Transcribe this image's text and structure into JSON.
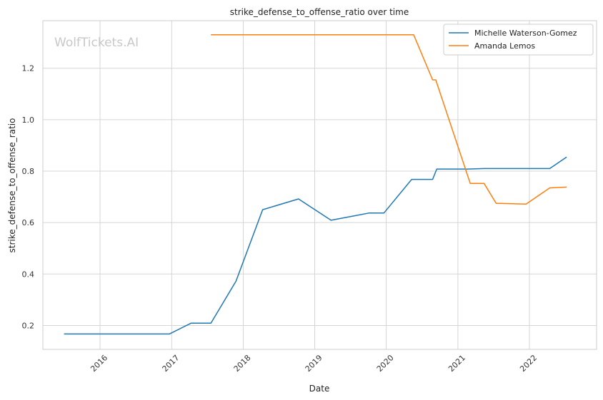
{
  "chart_data": {
    "type": "line",
    "title": "strike_defense_to_offense_ratio over time",
    "xlabel": "Date",
    "ylabel": "strike_defense_to_offense_ratio",
    "watermark": "WolfTickets.AI",
    "x_ticks": [
      "2016",
      "2017",
      "2018",
      "2019",
      "2020",
      "2021",
      "2022"
    ],
    "y_ticks": [
      "0.2",
      "0.4",
      "0.6",
      "0.8",
      "1.0",
      "1.2"
    ],
    "xlim": [
      "2015-03-15",
      "2022-12-10"
    ],
    "ylim": [
      0.107,
      1.385
    ],
    "grid": true,
    "legend_position": "top-right",
    "series": [
      {
        "name": "Michelle Waterson-Gomez",
        "color": "#1f77b4",
        "points": [
          [
            "2015-07-01",
            0.167
          ],
          [
            "2016-12-20",
            0.167
          ],
          [
            "2017-04-10",
            0.209
          ],
          [
            "2017-07-20",
            0.209
          ],
          [
            "2017-11-25",
            0.372
          ],
          [
            "2018-04-10",
            0.65
          ],
          [
            "2018-10-10",
            0.692
          ],
          [
            "2019-03-25",
            0.609
          ],
          [
            "2019-10-05",
            0.637
          ],
          [
            "2019-12-20",
            0.637
          ],
          [
            "2020-05-10",
            0.768
          ],
          [
            "2020-08-25",
            0.768
          ],
          [
            "2020-09-15",
            0.808
          ],
          [
            "2021-02-20",
            0.808
          ],
          [
            "2021-05-15",
            0.81
          ],
          [
            "2022-04-15",
            0.81
          ],
          [
            "2022-07-10",
            0.855
          ]
        ]
      },
      {
        "name": "Amanda Lemos",
        "color": "#ff7f0e",
        "points": [
          [
            "2017-07-20",
            1.33
          ],
          [
            "2020-05-20",
            1.33
          ],
          [
            "2020-08-25",
            1.155
          ],
          [
            "2020-09-10",
            1.155
          ],
          [
            "2021-03-05",
            0.752
          ],
          [
            "2021-05-15",
            0.752
          ],
          [
            "2021-07-15",
            0.675
          ],
          [
            "2021-12-15",
            0.672
          ],
          [
            "2022-04-15",
            0.735
          ],
          [
            "2022-07-10",
            0.738
          ]
        ]
      }
    ]
  }
}
